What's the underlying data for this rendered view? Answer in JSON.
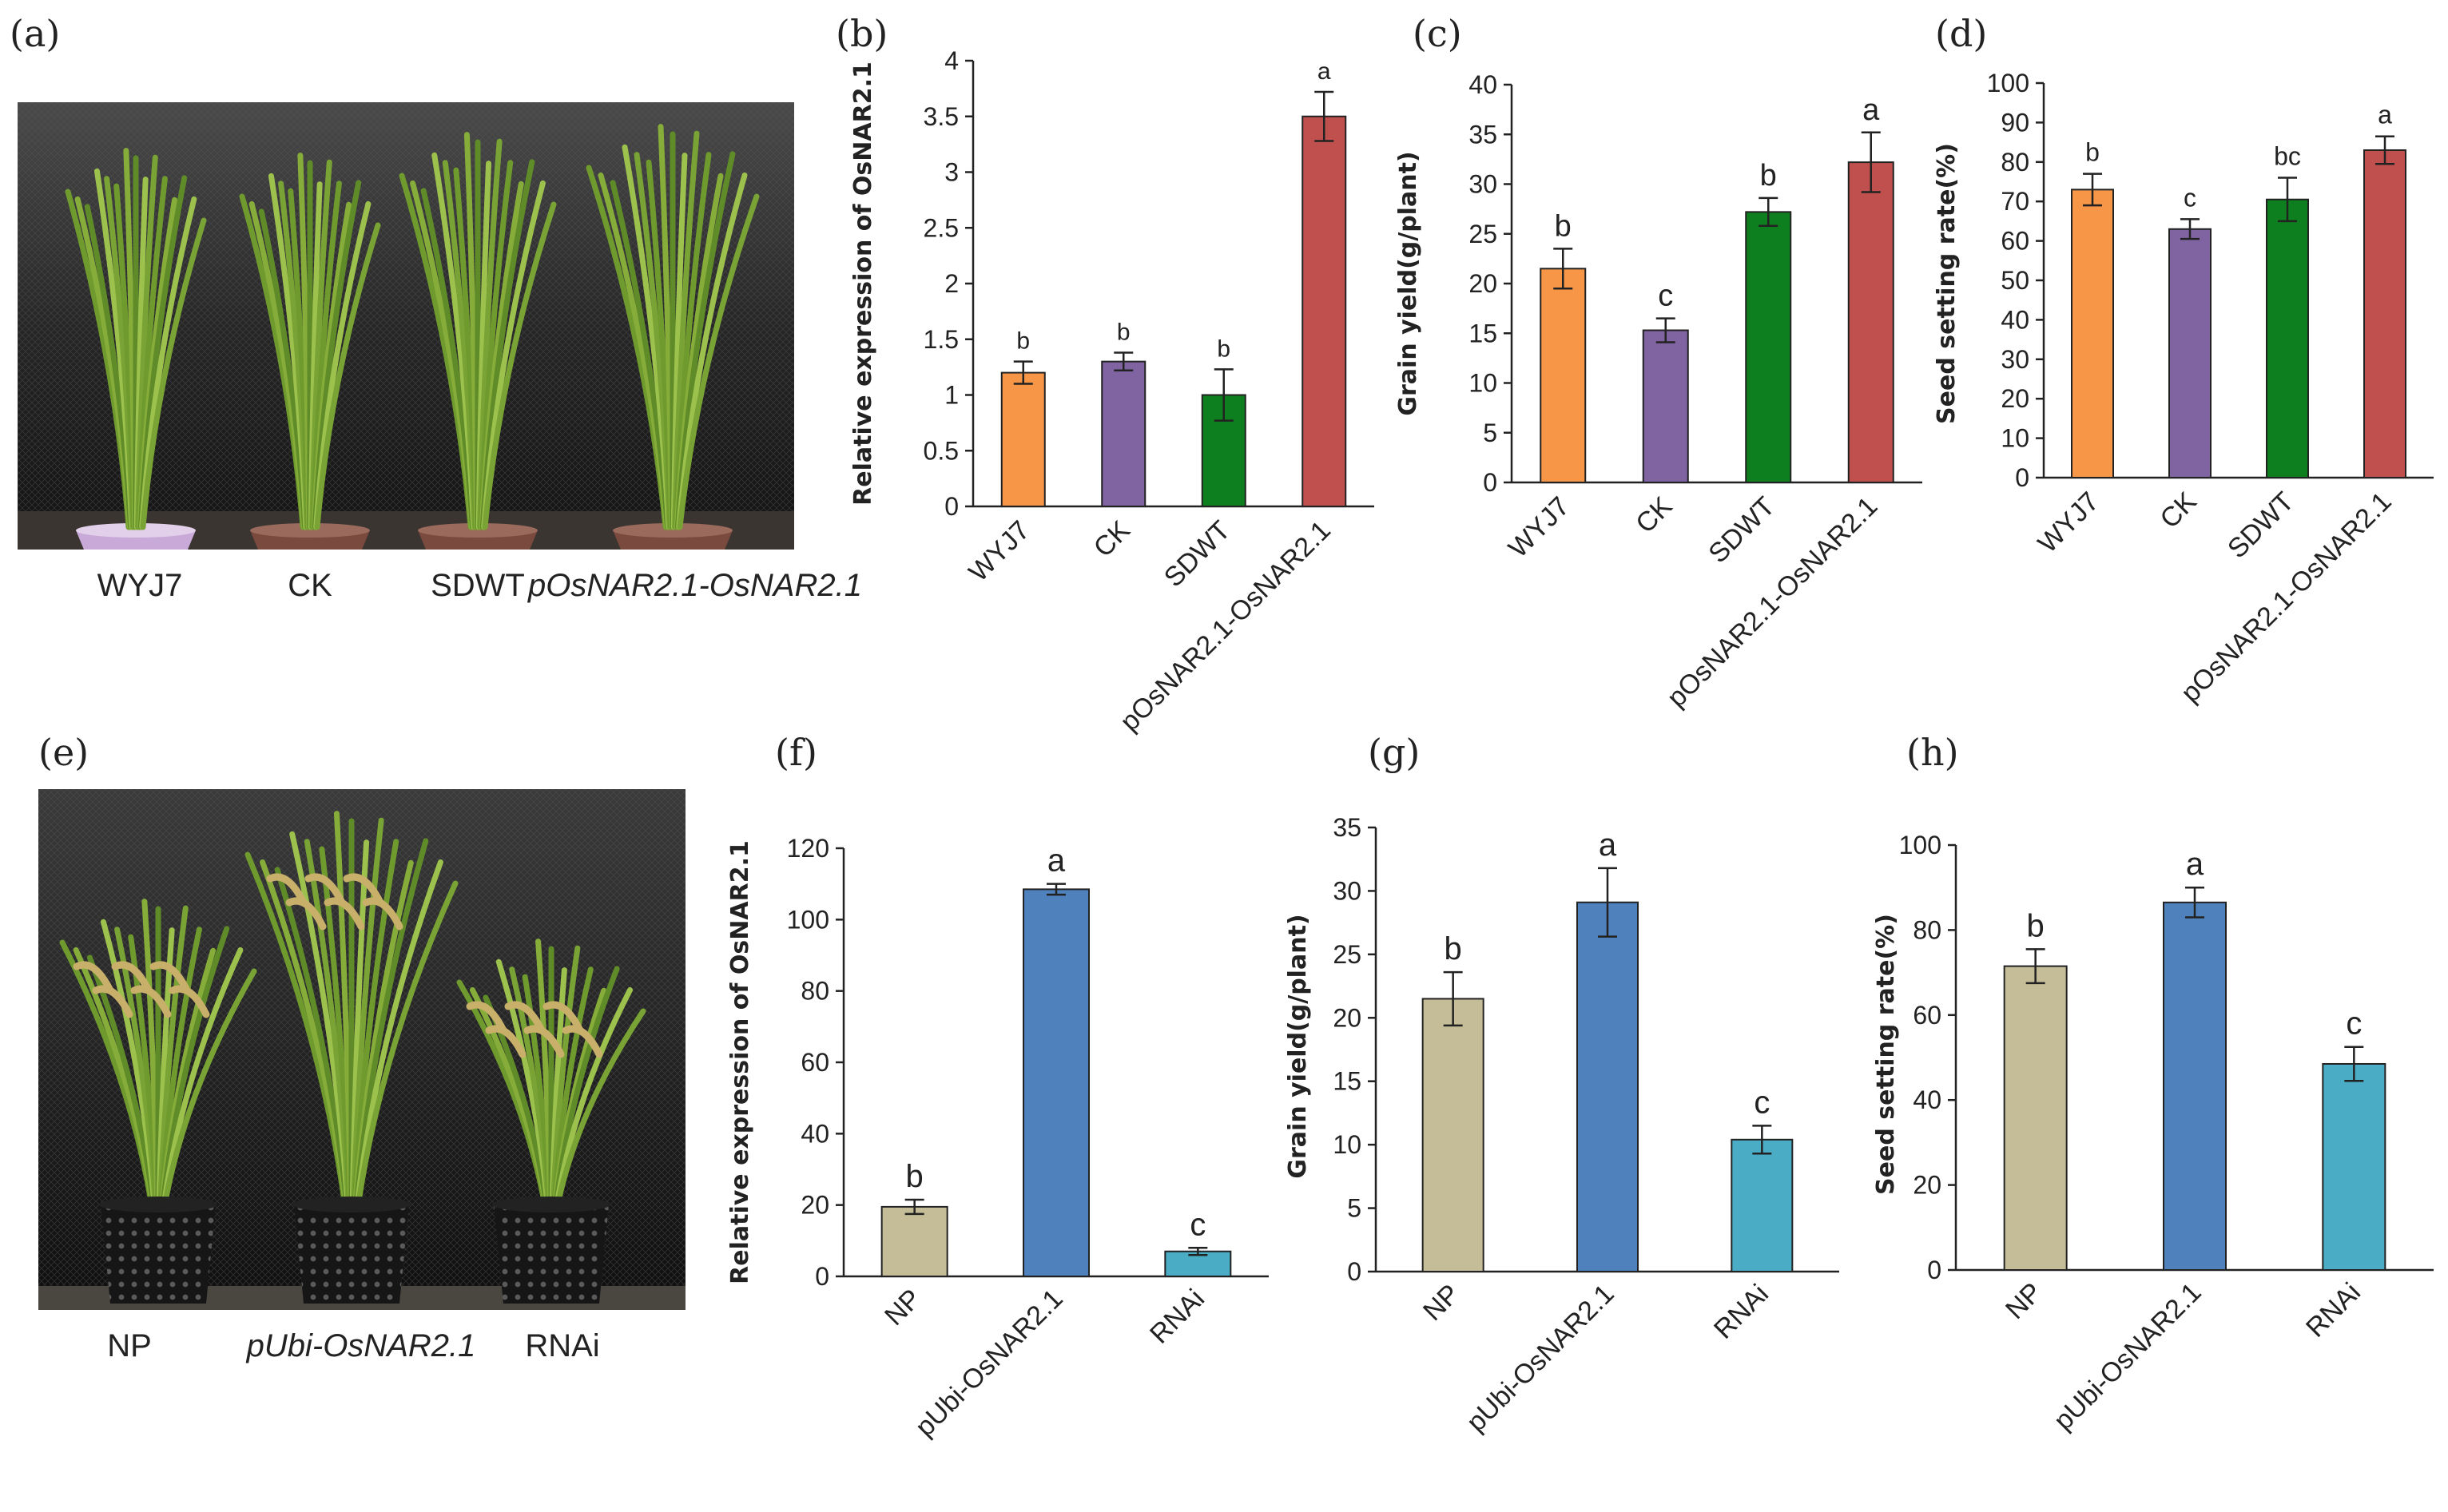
{
  "photos": [
    {
      "panel": "(a)",
      "captions": [
        "WYJ7",
        "CK",
        "SDWT",
        "pOsNAR2.1-OsNAR2.1"
      ],
      "caption_italic": [
        false,
        false,
        false,
        true
      ]
    },
    {
      "panel": "(e)",
      "captions": [
        "NP",
        "pUbi-OsNAR2.1",
        "RNAi"
      ],
      "caption_italic": [
        false,
        true,
        false
      ]
    }
  ],
  "colors": {
    "orange": "#F79646",
    "purple": "#8064A2",
    "green": "#0E7F1E",
    "red": "#C0504D",
    "tan": "#C4BD97",
    "blue": "#4F81BD",
    "teal": "#4BACC6"
  },
  "chart_data": [
    {
      "panel": "(b)",
      "type": "bar",
      "ylabel": "Relative expression of OsNAR2.1",
      "categories": [
        "WYJ7",
        "CK",
        "SDWT",
        "pOsNAR2.1-OsNAR2.1"
      ],
      "values": [
        1.2,
        1.3,
        1.0,
        3.5
      ],
      "errors": [
        0.1,
        0.08,
        0.23,
        0.22
      ],
      "significance": [
        "b",
        "b",
        "b",
        "a"
      ],
      "bar_colors": [
        "#F79646",
        "#8064A2",
        "#0E7F1E",
        "#C0504D"
      ],
      "ylim": [
        0,
        4
      ],
      "yticks": [
        "0",
        "0.5",
        "1",
        "1.5",
        "2",
        "2.5",
        "3",
        "3.5",
        "4"
      ]
    },
    {
      "panel": "(c)",
      "type": "bar",
      "ylabel": "Grain yield(g/plant)",
      "categories": [
        "WYJ7",
        "CK",
        "SDWT",
        "pOsNAR2.1-OsNAR2.1"
      ],
      "values": [
        21.5,
        15.3,
        27.2,
        32.2
      ],
      "errors": [
        2.0,
        1.2,
        1.4,
        3.0
      ],
      "significance": [
        "b",
        "c",
        "b",
        "a"
      ],
      "bar_colors": [
        "#F79646",
        "#8064A2",
        "#0E7F1E",
        "#C0504D"
      ],
      "ylim": [
        0,
        40
      ],
      "yticks": [
        "0",
        "5",
        "10",
        "15",
        "20",
        "25",
        "30",
        "35",
        "40"
      ]
    },
    {
      "panel": "(d)",
      "type": "bar",
      "ylabel": "Seed setting rate(%)",
      "categories": [
        "WYJ7",
        "CK",
        "SDWT",
        "pOsNAR2.1-OsNAR2.1"
      ],
      "values": [
        73,
        63,
        70.5,
        83
      ],
      "errors": [
        4,
        2.5,
        5.5,
        3.5
      ],
      "significance": [
        "b",
        "c",
        "bc",
        "a"
      ],
      "bar_colors": [
        "#F79646",
        "#8064A2",
        "#0E7F1E",
        "#C0504D"
      ],
      "ylim": [
        0,
        100
      ],
      "yticks": [
        "0",
        "10",
        "20",
        "30",
        "40",
        "50",
        "60",
        "70",
        "80",
        "90",
        "100"
      ]
    },
    {
      "panel": "(f)",
      "type": "bar",
      "ylabel": "Relative expression of OsNAR2.1",
      "categories": [
        "NP",
        "pUbi-OsNAR2.1",
        "RNAi"
      ],
      "values": [
        19.5,
        108.5,
        7
      ],
      "errors": [
        2,
        1.5,
        1
      ],
      "significance": [
        "b",
        "a",
        "c"
      ],
      "bar_colors": [
        "#C4BD97",
        "#4F81BD",
        "#4BACC6"
      ],
      "ylim": [
        0,
        120
      ],
      "yticks": [
        "0",
        "20",
        "40",
        "60",
        "80",
        "100",
        "120"
      ]
    },
    {
      "panel": "(g)",
      "type": "bar",
      "ylabel": "Grain yield(g/plant)",
      "categories": [
        "NP",
        "pUbi-OsNAR2.1",
        "RNAi"
      ],
      "values": [
        21.5,
        29.1,
        10.4
      ],
      "errors": [
        2.1,
        2.7,
        1.1
      ],
      "significance": [
        "b",
        "a",
        "c"
      ],
      "bar_colors": [
        "#C4BD97",
        "#4F81BD",
        "#4BACC6"
      ],
      "ylim": [
        0,
        35
      ],
      "yticks": [
        "0",
        "5",
        "10",
        "15",
        "20",
        "25",
        "30",
        "35"
      ]
    },
    {
      "panel": "(h)",
      "type": "bar",
      "ylabel": "Seed setting rate(%)",
      "categories": [
        "NP",
        "pUbi-OsNAR2.1",
        "RNAi"
      ],
      "values": [
        71.5,
        86.5,
        48.5
      ],
      "errors": [
        4,
        3.5,
        4
      ],
      "significance": [
        "b",
        "a",
        "c"
      ],
      "bar_colors": [
        "#C4BD97",
        "#4F81BD",
        "#4BACC6"
      ],
      "ylim": [
        0,
        100
      ],
      "yticks": [
        "0",
        "20",
        "40",
        "60",
        "80",
        "100"
      ]
    }
  ]
}
